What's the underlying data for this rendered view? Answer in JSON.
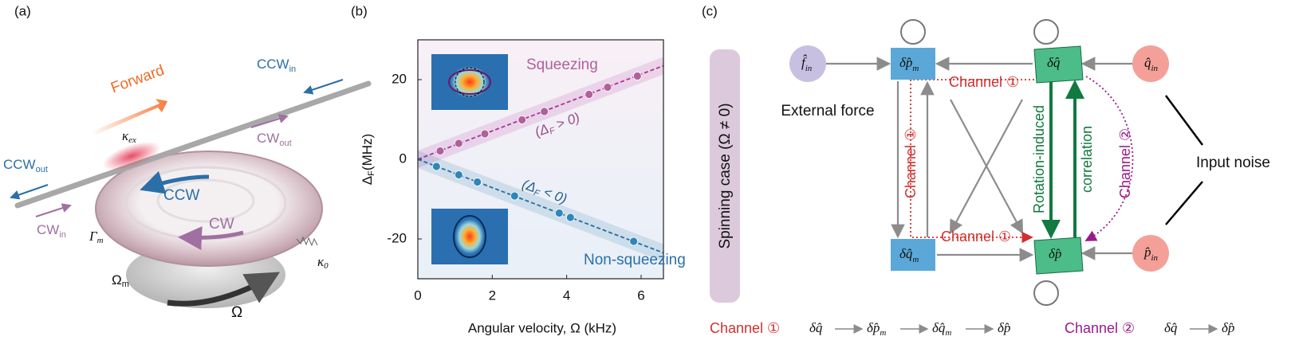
{
  "panels": {
    "a": "(a)",
    "b": "(b)",
    "c": "(c)"
  },
  "illustration": {
    "forward": "Forward",
    "ccw_in": {
      "main": "CCW",
      "sub": "in"
    },
    "cw_out": {
      "main": "CW",
      "sub": "out"
    },
    "ccw_out": {
      "main": "CCW",
      "sub": "out"
    },
    "cw_in": {
      "main": "CW",
      "sub": "in"
    },
    "kappa_ex": {
      "main": "κ",
      "sub": "ex"
    },
    "ccw": "CCW",
    "cw": "CW",
    "gamma_m": {
      "main": "Γ",
      "sub": "m"
    },
    "omega_m": {
      "main": "Ω",
      "sub": "m"
    },
    "kappa_0": {
      "main": "κ",
      "sub": "0"
    },
    "omega": "Ω"
  },
  "chart_data": {
    "type": "scatter",
    "x_label": "Angular velocity, Ω (kHz)",
    "y_label": {
      "main": "Δ",
      "sub": "F",
      "unit": "(MHz)"
    },
    "xlim": [
      0,
      6.6
    ],
    "xticks": [
      0,
      2,
      4,
      6
    ],
    "ylim": [
      -30,
      30
    ],
    "yticks": [
      -20,
      0,
      20
    ],
    "series": [
      {
        "name": "Squeezing",
        "color": "#b0609a",
        "x": [
          0.6,
          1.1,
          1.8,
          2.8,
          3.4,
          4.6,
          5.1,
          5.9
        ],
        "values": [
          2.1,
          4.0,
          6.4,
          9.9,
          12.0,
          16.3,
          18.1,
          20.9
        ]
      },
      {
        "name": "Non-squeezing",
        "color": "#2f86b8",
        "x": [
          0.5,
          1.1,
          1.6,
          2.6,
          3.8,
          4.1,
          5.8
        ],
        "values": [
          -1.8,
          -3.9,
          -5.7,
          -9.2,
          -13.5,
          -14.6,
          -20.6
        ]
      }
    ],
    "fits": [
      {
        "x": [
          0,
          6.6
        ],
        "values": [
          0,
          23.5
        ],
        "color": "#b0309a"
      },
      {
        "x": [
          0,
          6.6
        ],
        "values": [
          0,
          -23.5
        ],
        "color": "#1f6fa0"
      }
    ],
    "annotations": [
      {
        "pre": "(Δ",
        "sub": "F",
        "post": " > 0)"
      },
      {
        "pre": "(Δ",
        "sub": "F",
        "post": " < 0)"
      }
    ]
  },
  "diagram": {
    "side_label": "Spinning case (Ω ≠ 0)",
    "nodes": {
      "f_in": {
        "main": "f̂",
        "sub": "in"
      },
      "dp_m": {
        "main": "δp̂",
        "sub": "m"
      },
      "dq": {
        "main": "δq̂"
      },
      "q_in": {
        "main": "q̂",
        "sub": "in"
      },
      "dq_m": {
        "main": "δq̂",
        "sub": "m"
      },
      "dp": {
        "main": "δp̂"
      },
      "p_in": {
        "main": "p̂",
        "sub": "in"
      }
    },
    "external_force": "External force",
    "input_noise": "Input noise",
    "channel1_labels": [
      "Channel ①",
      "Channel ①",
      "Channel ①"
    ],
    "channel2_label": "Channel ②",
    "rotation_induced": "Rotation-induced",
    "correlation": "correlation",
    "legend": {
      "channel1": {
        "name": "Channel ①",
        "path": [
          {
            "main": "δq̂"
          },
          {
            "main": "δp̂",
            "sub": "m"
          },
          {
            "main": "δq̂",
            "sub": "m"
          },
          {
            "main": "δp̂"
          }
        ]
      },
      "channel2": {
        "name": "Channel ②",
        "path": [
          {
            "main": "δq̂"
          },
          {
            "main": "δp̂"
          }
        ]
      }
    }
  }
}
